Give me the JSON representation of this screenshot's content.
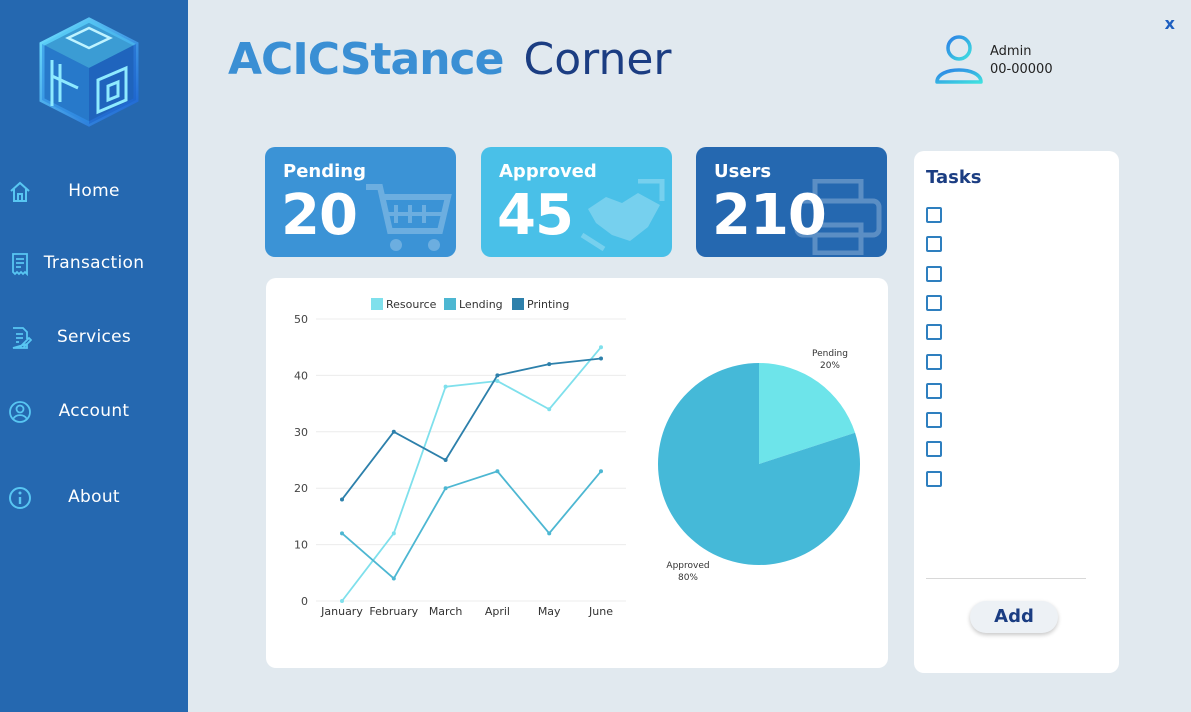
{
  "window": {
    "close_label": "x"
  },
  "sidebar": {
    "items": [
      {
        "label": "Home",
        "icon": "home-icon"
      },
      {
        "label": "Transaction",
        "icon": "receipt-icon"
      },
      {
        "label": "Services",
        "icon": "document-edit-icon"
      },
      {
        "label": "Account",
        "icon": "user-circle-icon"
      },
      {
        "label": "About",
        "icon": "info-icon"
      }
    ]
  },
  "header": {
    "brand": "ACICStance",
    "subtitle": "Corner"
  },
  "profile": {
    "role": "Admin",
    "id": "00-00000"
  },
  "stats": [
    {
      "label": "Pending",
      "value": "20",
      "color": "#3b93d6",
      "icon": "cart-icon"
    },
    {
      "label": "Approved",
      "value": "45",
      "color": "#49c0e8",
      "icon": "handshake-icon"
    },
    {
      "label": "Users",
      "value": "210",
      "color": "#2568b0",
      "icon": "printer-icon"
    }
  ],
  "chart_data": [
    {
      "type": "line",
      "categories": [
        "January",
        "February",
        "March",
        "April",
        "May",
        "June"
      ],
      "series": [
        {
          "name": "Resource",
          "values": [
            0,
            12,
            38,
            39,
            34,
            45
          ],
          "color": "#7fe0ec"
        },
        {
          "name": "Lending",
          "values": [
            12,
            4,
            20,
            23,
            12,
            23
          ],
          "color": "#4db7d2"
        },
        {
          "name": "Printing",
          "values": [
            18,
            30,
            25,
            40,
            42,
            43
          ],
          "color": "#2d80ab"
        }
      ],
      "ylim": [
        0,
        50
      ],
      "yticks": [
        "0",
        "10",
        "20",
        "30",
        "40",
        "50"
      ],
      "legend": "top",
      "grid": true
    },
    {
      "type": "pie",
      "slices": [
        {
          "label": "Pending",
          "pct_label": "20%",
          "value": 20,
          "color": "#6de4ea"
        },
        {
          "label": "Approved",
          "pct_label": "80%",
          "value": 80,
          "color": "#45b9d8"
        }
      ]
    }
  ],
  "tasks": {
    "title": "Tasks",
    "count": 10,
    "add_label": "Add"
  }
}
